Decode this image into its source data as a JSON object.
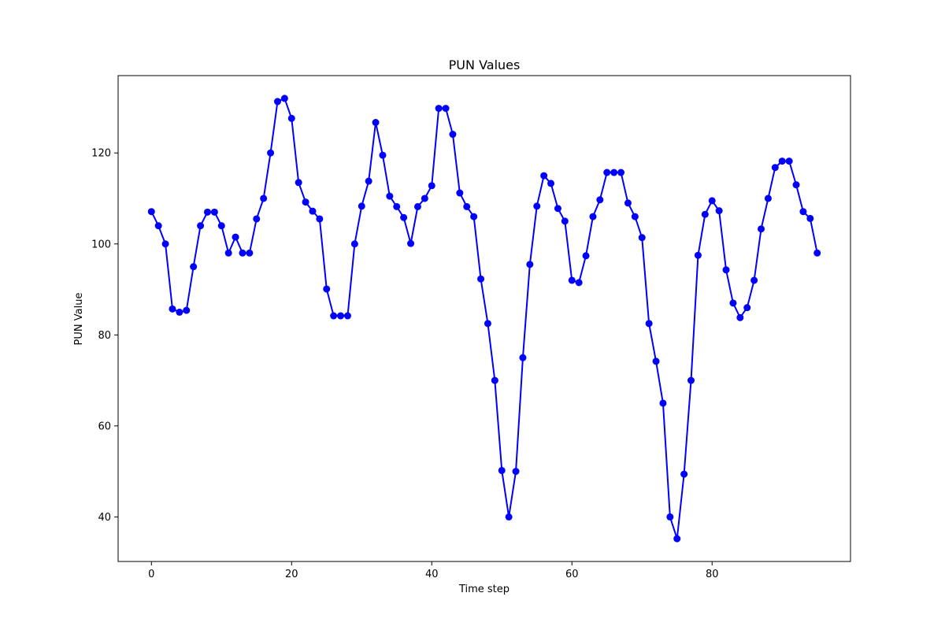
{
  "chart_data": {
    "type": "line",
    "title": "PUN Values",
    "xlabel": "Time step",
    "ylabel": "PUN Value",
    "xlim": [
      -4.75,
      99.75
    ],
    "ylim": [
      30.2,
      137
    ],
    "xticks": [
      0,
      20,
      40,
      60,
      80
    ],
    "yticks": [
      40,
      60,
      80,
      100,
      120
    ],
    "grid": false,
    "line_color": "#0000ff",
    "marker": "circle",
    "series": [
      {
        "x": [
          0,
          1,
          2,
          3,
          4,
          5,
          6,
          7,
          8,
          9,
          10,
          11,
          12,
          13,
          14,
          15,
          16,
          17,
          18,
          19,
          20,
          21,
          22,
          23,
          24,
          25,
          26,
          27,
          28,
          29,
          30,
          31,
          32,
          33,
          34,
          35,
          36,
          37,
          38,
          39,
          40,
          41,
          42,
          43,
          44,
          45,
          46,
          47,
          48,
          49,
          50,
          51,
          52,
          53,
          54,
          55,
          56,
          57,
          58,
          59,
          60,
          61,
          62,
          63,
          64,
          65,
          66,
          67,
          68,
          69,
          70,
          71,
          72,
          73,
          74,
          75,
          76,
          77,
          78,
          79,
          80,
          81,
          82,
          83,
          84,
          85,
          86,
          87,
          88,
          89,
          90,
          91,
          92,
          93,
          94,
          95
        ],
        "values": [
          107.1,
          104.0,
          100.0,
          85.7,
          85.0,
          85.4,
          95.0,
          104.0,
          107.0,
          107.0,
          104.0,
          98.0,
          101.5,
          98.0,
          98.0,
          105.5,
          110.0,
          120.0,
          131.3,
          132.0,
          127.6,
          113.5,
          109.2,
          107.2,
          105.5,
          90.1,
          84.2,
          84.2,
          84.2,
          100.0,
          108.3,
          113.8,
          126.7,
          119.5,
          110.5,
          108.2,
          105.8,
          100.1,
          108.2,
          110.0,
          112.8,
          129.8,
          129.8,
          124.1,
          111.2,
          108.2,
          106.0,
          92.3,
          82.5,
          70.0,
          50.2,
          40.0,
          50.0,
          75.0,
          95.5,
          108.3,
          115.0,
          113.3,
          107.8,
          105.0,
          92.0,
          91.5,
          97.4,
          106.0,
          109.7,
          115.7,
          115.7,
          115.7,
          109.0,
          106.0,
          101.4,
          82.5,
          74.2,
          65.0,
          40.0,
          35.2,
          49.4,
          70.0,
          97.5,
          106.5,
          109.5,
          107.3,
          94.3,
          87.0,
          83.8,
          86.0,
          92.0,
          103.3,
          110.0,
          116.8,
          118.2,
          118.2,
          113.0,
          107.1,
          105.6,
          98.0
        ]
      }
    ]
  }
}
